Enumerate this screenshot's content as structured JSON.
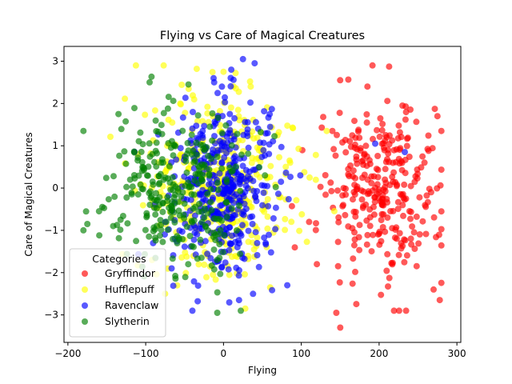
{
  "chart_data": {
    "type": "scatter",
    "title": "Flying vs Care of Magical Creatures",
    "xlabel": "Flying",
    "ylabel": "Care of Magical Creatures",
    "xlim": [
      -205,
      305
    ],
    "ylim": [
      -3.65,
      3.35
    ],
    "xticks": [
      -200,
      -100,
      0,
      100,
      200,
      300
    ],
    "yticks": [
      -3,
      -2,
      -1,
      0,
      1,
      2,
      3
    ],
    "grid": false,
    "legend": {
      "title": "Categories",
      "placement": "lower-left"
    },
    "marker_alpha": 0.65,
    "series": [
      {
        "name": "Gryffindor",
        "color": "#ff0000",
        "center": [
          200,
          0
        ],
        "spread": [
          37,
          1.0
        ],
        "count": 300,
        "extreme_points": [
          [
            145,
            -2.95
          ],
          [
            150,
            -3.3
          ],
          [
            185,
            2.4
          ],
          [
            230,
            1.95
          ],
          [
            275,
            1.7
          ],
          [
            278,
            -2.65
          ],
          [
            270,
            -2.4
          ],
          [
            140,
            1.35
          ],
          [
            110,
            -0.8
          ],
          [
            120,
            -1.8
          ]
        ]
      },
      {
        "name": "Hufflepuff",
        "color": "#ffff00",
        "center": [
          0,
          0
        ],
        "spread": [
          48,
          1.0
        ],
        "count": 400,
        "extreme_points": [
          [
            0,
            2.75
          ],
          [
            35,
            2.4
          ],
          [
            28,
            -2.85
          ],
          [
            -110,
            0.8
          ],
          [
            80,
            0.5
          ],
          [
            85,
            0.65
          ],
          [
            60,
            -2.35
          ],
          [
            -75,
            -2.5
          ]
        ]
      },
      {
        "name": "Ravenclaw",
        "color": "#0000ff",
        "center": [
          0,
          0
        ],
        "spread": [
          33,
          1.0
        ],
        "count": 400,
        "extreme_points": [
          [
            25,
            3.05
          ],
          [
            40,
            2.95
          ],
          [
            10,
            2.8
          ],
          [
            -12,
            2.5
          ],
          [
            -40,
            -2.9
          ],
          [
            20,
            -2.65
          ],
          [
            82,
            -2.3
          ],
          [
            233,
            0.85
          ],
          [
            195,
            1.05
          ]
        ]
      },
      {
        "name": "Slytherin",
        "color": "#008000",
        "center": [
          -60,
          0
        ],
        "spread": [
          42,
          1.0
        ],
        "count": 300,
        "extreme_points": [
          [
            -180,
            1.35
          ],
          [
            -175,
            -0.85
          ],
          [
            -180,
            -1.0
          ],
          [
            -95,
            2.5
          ],
          [
            -135,
            1.75
          ],
          [
            -8,
            -2.95
          ],
          [
            -160,
            -0.55
          ],
          [
            -45,
            2.45
          ]
        ]
      }
    ]
  }
}
